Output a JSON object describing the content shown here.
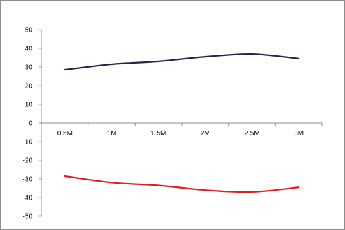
{
  "chart_data": {
    "type": "line",
    "categories": [
      "0.5M",
      "1M",
      "1.5M",
      "2M",
      "2.5M",
      "3M"
    ],
    "series": [
      {
        "color": "#1f2a4a",
        "values": [
          28.5,
          31.5,
          33,
          35.5,
          37,
          34.5
        ]
      },
      {
        "color": "#e02020",
        "values": [
          -28.5,
          -32,
          -33.5,
          -36,
          -37,
          -34.5
        ]
      }
    ],
    "ylim": [
      -50,
      50
    ],
    "yticks": [
      "50",
      "40",
      "30",
      "20",
      "10",
      "0",
      "-10",
      "-20",
      "-30",
      "-40",
      "-50"
    ],
    "ytick_values": [
      50,
      40,
      30,
      20,
      10,
      0,
      -10,
      -20,
      -30,
      -40,
      -50
    ],
    "smooth": true,
    "grid": false,
    "legend": "none"
  }
}
